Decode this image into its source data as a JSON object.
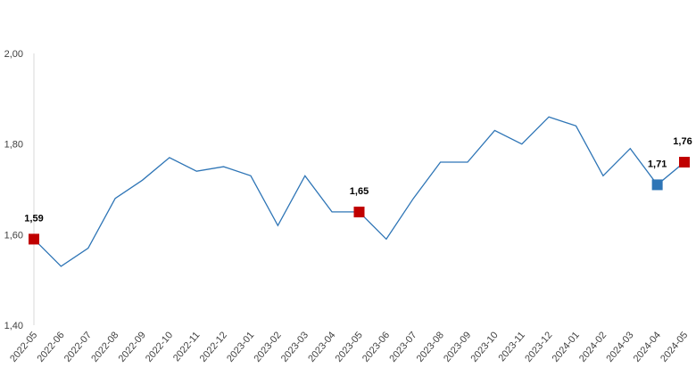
{
  "chart_data": {
    "type": "line",
    "title": "",
    "xlabel": "",
    "ylabel": "",
    "ylim": [
      1.4,
      2.0
    ],
    "yticks": [
      1.4,
      1.6,
      1.8,
      2.0
    ],
    "ytick_labels": [
      "1,40",
      "1,60",
      "1,80",
      "2,00"
    ],
    "grid": false,
    "legend": "none",
    "categories": [
      "2022-05",
      "2022-06",
      "2022-07",
      "2022-08",
      "2022-09",
      "2022-10",
      "2022-11",
      "2022-12",
      "2023-01",
      "2023-02",
      "2023-03",
      "2023-04",
      "2023-05",
      "2023-06",
      "2023-07",
      "2023-08",
      "2023-09",
      "2023-10",
      "2023-11",
      "2023-12",
      "2024-01",
      "2024-02",
      "2024-03",
      "2024-04",
      "2024-05"
    ],
    "series": [
      {
        "values": [
          1.59,
          1.53,
          1.57,
          1.68,
          1.72,
          1.77,
          1.74,
          1.75,
          1.73,
          1.62,
          1.73,
          1.65,
          1.65,
          1.59,
          1.68,
          1.76,
          1.76,
          1.83,
          1.8,
          1.86,
          1.84,
          1.73,
          1.79,
          1.71,
          1.76
        ],
        "color": "#2e75b6"
      }
    ],
    "highlights": [
      {
        "index": 0,
        "label": "1,59",
        "color": "#c00000"
      },
      {
        "index": 12,
        "label": "1,65",
        "color": "#c00000"
      },
      {
        "index": 23,
        "label": "1,71",
        "color": "#2e75b6"
      },
      {
        "index": 24,
        "label": "1,76",
        "color": "#c00000"
      }
    ]
  }
}
